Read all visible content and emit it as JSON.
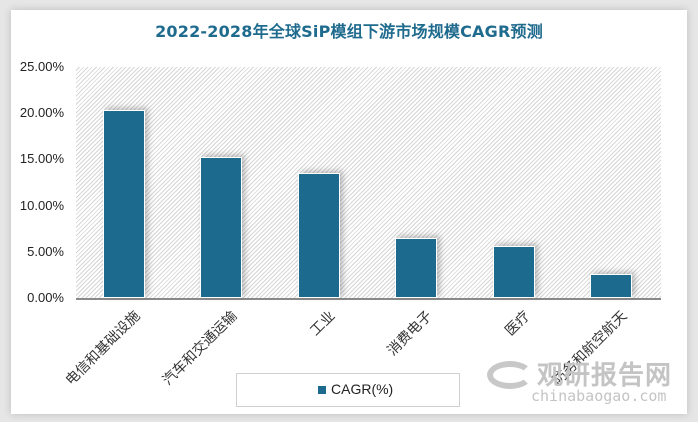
{
  "chart_data": {
    "type": "bar",
    "title": "2022-2028年全球SiP模组下游市场规模CAGR预测",
    "xlabel": "",
    "ylabel": "",
    "categories": [
      "电信和基础设施",
      "汽车和交通运输",
      "工业",
      "消费电子",
      "医疗",
      "防务和航空航天"
    ],
    "series": [
      {
        "name": "CAGR(%)",
        "values": [
          20.3,
          15.3,
          13.5,
          6.5,
          5.6,
          2.6
        ],
        "color": "#1c6a8e"
      }
    ],
    "ylim": [
      0,
      25
    ],
    "yticks": [
      "0.00%",
      "5.00%",
      "10.00%",
      "15.00%",
      "20.00%",
      "25.00%"
    ],
    "grid": false,
    "legend_position": "bottom"
  },
  "legend": {
    "label": "CAGR(%)"
  },
  "watermark": {
    "cn": "观研报告网",
    "en": "chinabaogao.com"
  }
}
